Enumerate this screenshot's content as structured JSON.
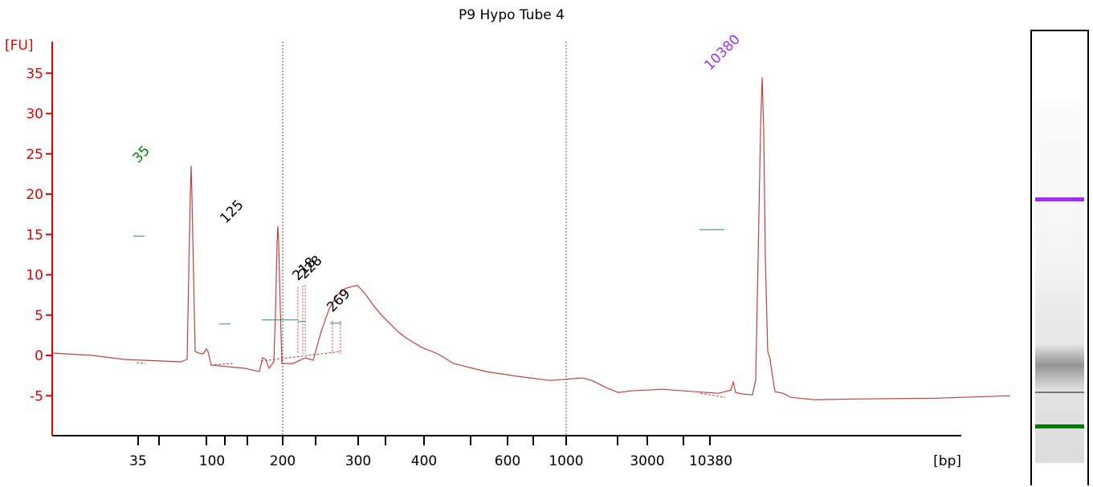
{
  "colors": {
    "axis": "#e60000",
    "trace": "#c04040",
    "ladder_label": "#008000",
    "upper_marker": "#9b30ff",
    "peak_label": "#000000",
    "baseline_tick": "#2e8b57"
  },
  "chart_data": {
    "type": "line",
    "title": "P9 Hypo Tube 4",
    "ylabel": "[FU]",
    "xlabel": "[bp]",
    "ylim": [
      -10,
      38
    ],
    "yticks": [
      35,
      30,
      25,
      20,
      15,
      10,
      5,
      0,
      -5
    ],
    "xscale": "electrophoresis migration (non-linear bp axis)",
    "xtick_labels": [
      "35",
      "100",
      "200",
      "300",
      "400",
      "600",
      "1000",
      "3000",
      "10380",
      "[bp]"
    ],
    "grid": "dotted vertical lines at 200 and 1000 bp",
    "peaks": [
      {
        "label": "35",
        "size_bp": 35,
        "fu": 23.5,
        "role": "lower marker"
      },
      {
        "label": "125",
        "size_bp": 125,
        "fu": 16,
        "role": "sample"
      },
      {
        "label": "218",
        "size_bp": 218,
        "fu": 8.5,
        "role": "sample"
      },
      {
        "label": "228",
        "size_bp": 228,
        "fu": 8.7,
        "role": "sample"
      },
      {
        "label": "269",
        "size_bp": 269,
        "fu": 4.3,
        "role": "sample"
      },
      {
        "label": "10380",
        "size_bp": 10380,
        "fu": 34.5,
        "role": "upper marker"
      }
    ],
    "trace": [
      [
        0,
        0.3
      ],
      [
        50,
        0.0
      ],
      [
        90,
        -0.5
      ],
      [
        160,
        -0.8
      ],
      [
        168,
        -0.5
      ],
      [
        170,
        10
      ],
      [
        172,
        20
      ],
      [
        173,
        23.5
      ],
      [
        174,
        20
      ],
      [
        176,
        10
      ],
      [
        178,
        0.5
      ],
      [
        182,
        0.3
      ],
      [
        188,
        0.2
      ],
      [
        192,
        0.8
      ],
      [
        194,
        0.5
      ],
      [
        198,
        -1.2
      ],
      [
        240,
        -1.6
      ],
      [
        258,
        -2.0
      ],
      [
        262,
        -0.3
      ],
      [
        266,
        -0.5
      ],
      [
        270,
        -1.6
      ],
      [
        276,
        -0.8
      ],
      [
        278,
        5
      ],
      [
        280,
        14
      ],
      [
        281,
        16
      ],
      [
        282,
        14
      ],
      [
        284,
        6
      ],
      [
        286,
        -1.0
      ],
      [
        300,
        -1.0
      ],
      [
        315,
        -0.3
      ],
      [
        325,
        -0.6
      ],
      [
        335,
        3.0
      ],
      [
        345,
        5.8
      ],
      [
        355,
        7.5
      ],
      [
        365,
        8.3
      ],
      [
        372,
        8.5
      ],
      [
        380,
        8.7
      ],
      [
        390,
        7.6
      ],
      [
        400,
        6.2
      ],
      [
        410,
        5.0
      ],
      [
        420,
        4.0
      ],
      [
        430,
        3.0
      ],
      [
        440,
        2.2
      ],
      [
        460,
        1.0
      ],
      [
        480,
        0.2
      ],
      [
        500,
        -1.0
      ],
      [
        540,
        -2.0
      ],
      [
        580,
        -2.6
      ],
      [
        620,
        -3.1
      ],
      [
        660,
        -2.8
      ],
      [
        672,
        -3.1
      ],
      [
        690,
        -4.0
      ],
      [
        700,
        -4.4
      ],
      [
        705,
        -4.6
      ],
      [
        720,
        -4.4
      ],
      [
        760,
        -4.2
      ],
      [
        800,
        -4.5
      ],
      [
        830,
        -4.7
      ],
      [
        845,
        -4.3
      ],
      [
        848,
        -3.3
      ],
      [
        851,
        -4.6
      ],
      [
        860,
        -4.8
      ],
      [
        872,
        -4.9
      ],
      [
        876,
        -3.0
      ],
      [
        879,
        12
      ],
      [
        882,
        28
      ],
      [
        884,
        34.5
      ],
      [
        886,
        28
      ],
      [
        888,
        12
      ],
      [
        891,
        0.5
      ],
      [
        894,
        -0.5
      ],
      [
        896,
        -2.0
      ],
      [
        900,
        -4.5
      ],
      [
        910,
        -4.7
      ],
      [
        920,
        -5.2
      ],
      [
        950,
        -5.5
      ],
      [
        1000,
        -5.4
      ],
      [
        1100,
        -5.3
      ],
      [
        1193,
        -5.0
      ]
    ]
  }
}
